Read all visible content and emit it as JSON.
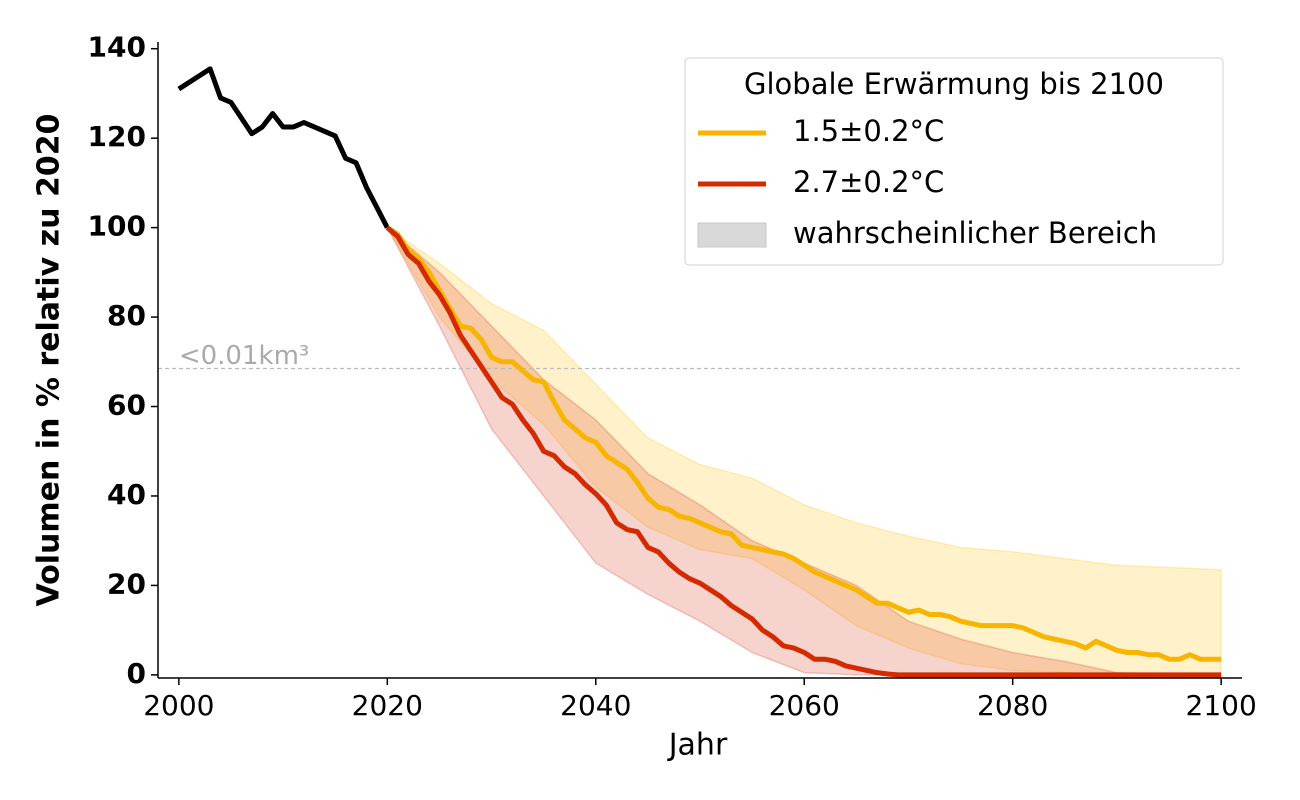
{
  "chart_data": {
    "type": "line",
    "xlabel": "Jahr",
    "ylabel": "Volumen in % relativ zu 2020",
    "xlim": [
      1998,
      2102
    ],
    "ylim": [
      -0.7,
      141.5
    ],
    "xticks": [
      2000,
      2020,
      2040,
      2060,
      2080,
      2100
    ],
    "yticks": [
      0,
      20,
      40,
      60,
      80,
      100,
      120,
      140
    ],
    "legend": "upper right",
    "legend_title": "Globale Erwärmung bis 2100",
    "band_label": "wahrscheinlicher Bereich",
    "band_legend_color": "#d9d9d9",
    "history": {
      "color": "#000000",
      "x": [
        2000,
        2001,
        2002,
        2003,
        2004,
        2005,
        2006,
        2007,
        2008,
        2009,
        2010,
        2011,
        2012,
        2013,
        2014,
        2015,
        2016,
        2017,
        2018,
        2019,
        2020
      ],
      "values": [
        131,
        132.5,
        134,
        135.5,
        129,
        128,
        124.5,
        121,
        122.5,
        125.5,
        122.5,
        122.5,
        123.5,
        122.5,
        121.5,
        120.5,
        115.5,
        114.5,
        109,
        104.5,
        100
      ]
    },
    "x": [
      2020,
      2021,
      2022,
      2023,
      2024,
      2025,
      2026,
      2027,
      2028,
      2029,
      2030,
      2031,
      2032,
      2033,
      2034,
      2035,
      2036,
      2037,
      2038,
      2039,
      2040,
      2041,
      2042,
      2043,
      2044,
      2045,
      2046,
      2047,
      2048,
      2049,
      2050,
      2051,
      2052,
      2053,
      2054,
      2055,
      2056,
      2057,
      2058,
      2059,
      2060,
      2061,
      2062,
      2063,
      2064,
      2065,
      2066,
      2067,
      2068,
      2069,
      2070,
      2071,
      2072,
      2073,
      2074,
      2075,
      2076,
      2077,
      2078,
      2079,
      2080,
      2081,
      2082,
      2083,
      2084,
      2085,
      2086,
      2087,
      2088,
      2089,
      2090,
      2091,
      2092,
      2093,
      2094,
      2095,
      2096,
      2097,
      2098,
      2099,
      2100
    ],
    "series": [
      {
        "name": "1.5±0.2°C",
        "color": "#f7b500",
        "band_color": "#ffc20e",
        "values": [
          100,
          98.5,
          95,
          93,
          90,
          86,
          82,
          78,
          77.5,
          75,
          71,
          70,
          70,
          68,
          66,
          65.5,
          61,
          57,
          55,
          53,
          52,
          49,
          47.5,
          46,
          43,
          39.5,
          37.5,
          37,
          35.5,
          35,
          34,
          33,
          32,
          31.5,
          29,
          28.5,
          28,
          27.5,
          27,
          26,
          24.5,
          23,
          22,
          21,
          20,
          19,
          17.5,
          16,
          16,
          15,
          14,
          14.5,
          13.5,
          13.5,
          13,
          12,
          11.5,
          11,
          11,
          11,
          11,
          10.5,
          9.5,
          8.5,
          8,
          7.5,
          7,
          6,
          7.5,
          6.5,
          5.5,
          5,
          5,
          4.5,
          4.5,
          3.5,
          3.5,
          4.5,
          3.5,
          3.5,
          3.5
        ],
        "band": {
          "x": [
            2020,
            2025,
            2030,
            2035,
            2040,
            2045,
            2050,
            2055,
            2060,
            2065,
            2070,
            2075,
            2080,
            2085,
            2090,
            2095,
            2100
          ],
          "upper": [
            100,
            92,
            83,
            77,
            65,
            53,
            47,
            44,
            38,
            34,
            31,
            28.5,
            27.5,
            26,
            24.5,
            24,
            23.5
          ],
          "lower": [
            100,
            80,
            66,
            56,
            42,
            33,
            28,
            26,
            19,
            11,
            6,
            2.5,
            1,
            0.5,
            0,
            0,
            0
          ]
        }
      },
      {
        "name": "2.7±0.2°C",
        "color": "#d42a00",
        "band_color": "#d9381e",
        "values": [
          100,
          98,
          94,
          92,
          88,
          85,
          81,
          76,
          72.5,
          69,
          65.5,
          62,
          60.5,
          57,
          54,
          50,
          49,
          46.5,
          45,
          42.5,
          40.5,
          38,
          34,
          32.5,
          32,
          28.5,
          27.5,
          25,
          23,
          21.5,
          20.5,
          19,
          17.5,
          15.5,
          14,
          12.5,
          10,
          8.5,
          6.5,
          6,
          5,
          3.5,
          3.5,
          3,
          2,
          1.5,
          1,
          0.5,
          0.2,
          0,
          0,
          0,
          0,
          0,
          0,
          0,
          0,
          0,
          0,
          0,
          0,
          0,
          0,
          0,
          0,
          0,
          0,
          0,
          0,
          0,
          0,
          0,
          0,
          0,
          0,
          0,
          0,
          0,
          0,
          0,
          0
        ],
        "band": {
          "x": [
            2020,
            2025,
            2030,
            2035,
            2040,
            2045,
            2050,
            2055,
            2060,
            2065,
            2070,
            2075,
            2080,
            2085,
            2090,
            2095,
            2100
          ],
          "upper": [
            100,
            90,
            78,
            66,
            57,
            45,
            38,
            30,
            25,
            20,
            12,
            8,
            5,
            3,
            0.5,
            0,
            0
          ],
          "lower": [
            100,
            78,
            55,
            40,
            25,
            18,
            12,
            5,
            0.5,
            0,
            0,
            0,
            0,
            0,
            0,
            0,
            0
          ]
        }
      }
    ],
    "reference_line": {
      "value": 68.5,
      "label": "<0.01km³",
      "color": "#bbbbbb"
    }
  }
}
